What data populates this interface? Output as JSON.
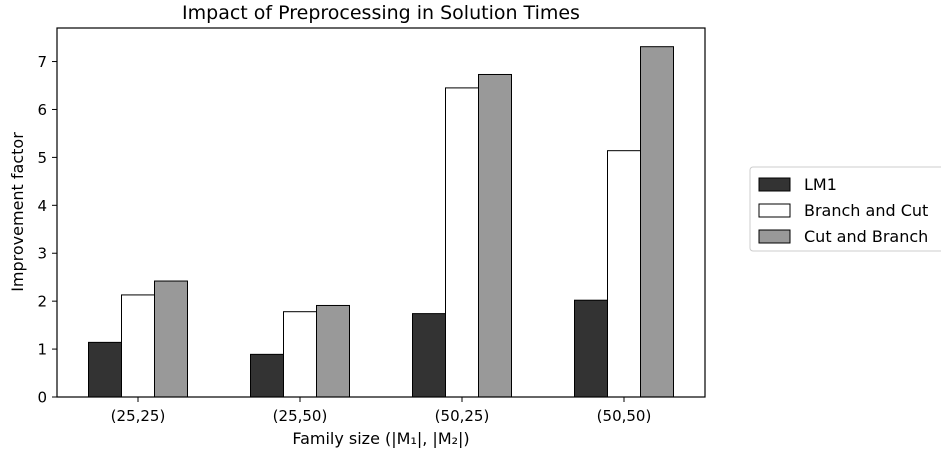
{
  "chart_data": {
    "type": "bar",
    "title": "Impact of Preprocessing in Solution Times",
    "xlabel": "Family size (|M₁|, |M₂|)",
    "ylabel": "Improvement factor",
    "categories": [
      "(25,25)",
      "(25,50)",
      "(50,25)",
      "(50,50)"
    ],
    "series": [
      {
        "name": "LM1",
        "values": [
          1.14,
          0.89,
          1.74,
          2.02
        ],
        "color": "#333333"
      },
      {
        "name": "Branch and Cut",
        "values": [
          2.13,
          1.78,
          6.45,
          5.14
        ],
        "color": "#ffffff"
      },
      {
        "name": "Cut and Branch",
        "values": [
          2.42,
          1.91,
          6.73,
          7.31
        ],
        "color": "#999999"
      }
    ],
    "yticks": [
      0,
      1,
      2,
      3,
      4,
      5,
      6,
      7
    ],
    "ylim": [
      0,
      7.7
    ],
    "grid": false,
    "legend_position": "right, outside plot"
  }
}
